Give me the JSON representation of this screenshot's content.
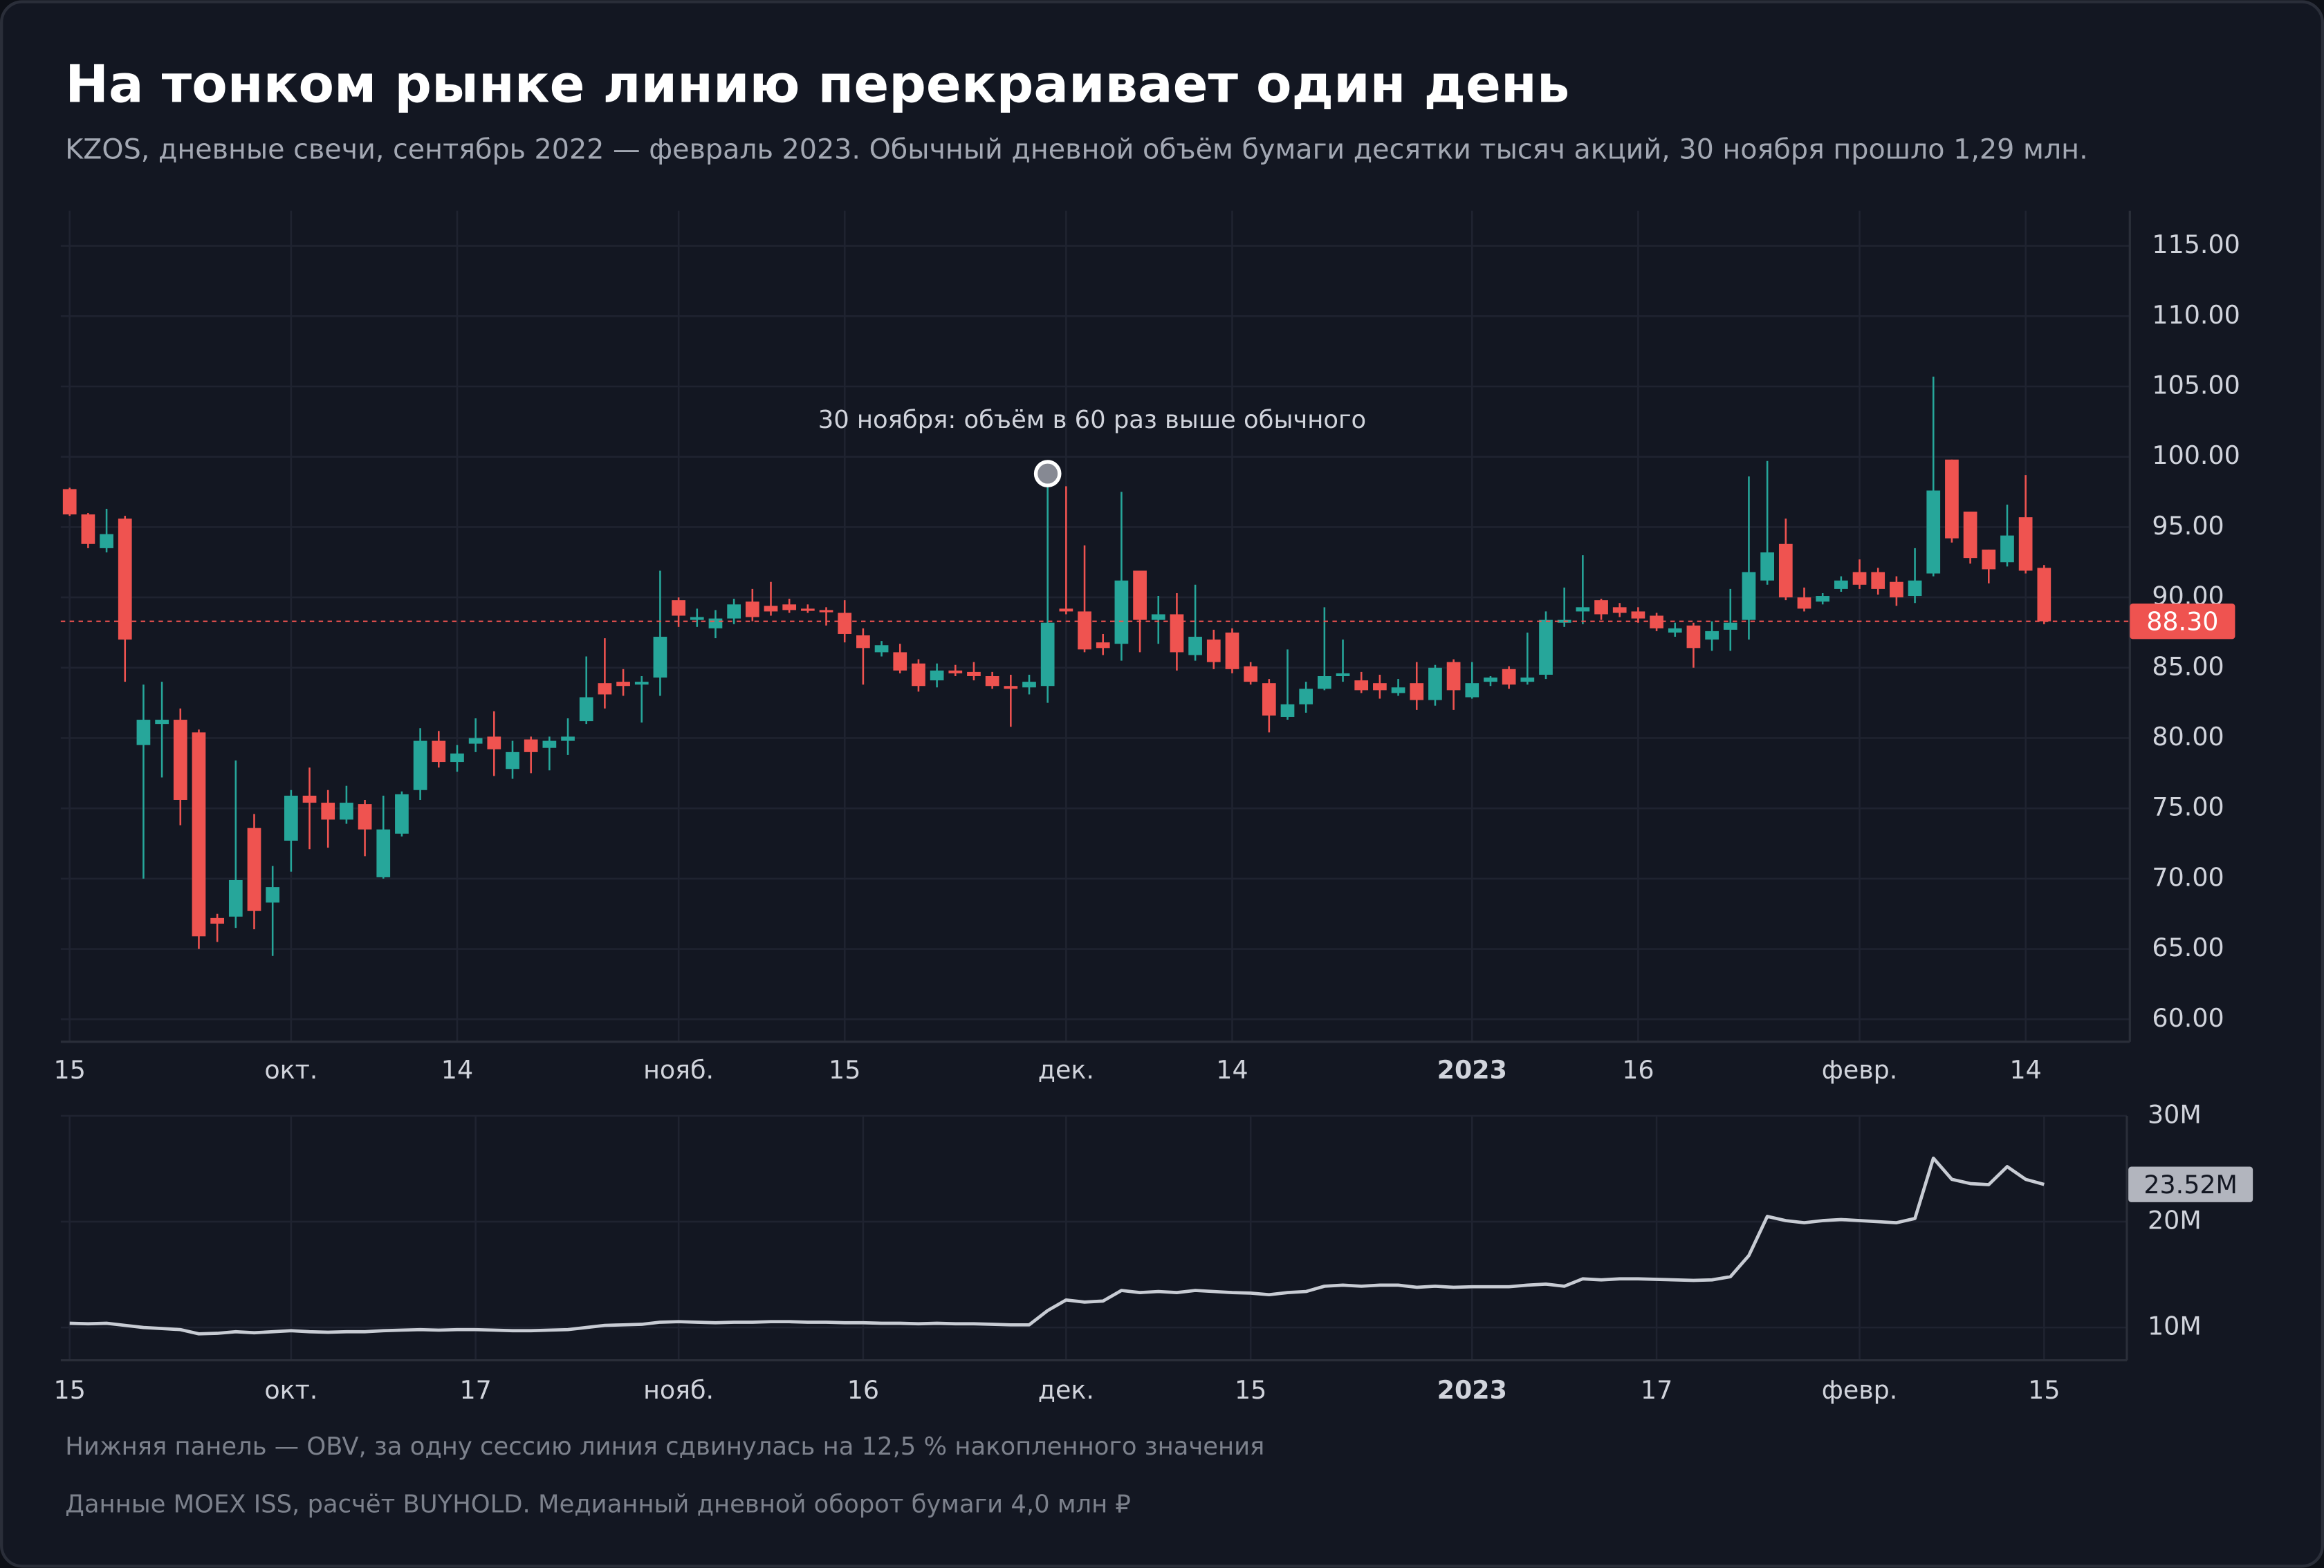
{
  "chart_data": [
    {
      "type": "candlestick",
      "title": "На тонком рынке линию перекраивает один день",
      "subtitle": "KZOS, дневные свечи, сентябрь 2022 — февраль 2023. Обычный дневной объём бумаги десятки тысяч акций, 30 ноября прошло 1,29 млн.",
      "annotation": {
        "text": "30 ноября: объём в 60 раз выше обычного",
        "value": 98.8
      },
      "up_color": "#26a69a",
      "down_color": "#ef5350",
      "price_line": {
        "value": 88.3,
        "label": "88.30"
      },
      "ylim": [
        58.4,
        117.5
      ],
      "yticks": [
        {
          "value": 60,
          "label": "60.00"
        },
        {
          "value": 65,
          "label": "65.00"
        },
        {
          "value": 70,
          "label": "70.00"
        },
        {
          "value": 75,
          "label": "75.00"
        },
        {
          "value": 80,
          "label": "80.00"
        },
        {
          "value": 85,
          "label": "85.00"
        },
        {
          "value": 90,
          "label": "90.00"
        },
        {
          "value": 95,
          "label": "95.00"
        },
        {
          "value": 100,
          "label": "100.00"
        },
        {
          "value": 105,
          "label": "105.00"
        },
        {
          "value": 110,
          "label": "110.00"
        },
        {
          "value": 115,
          "label": "115.00"
        }
      ],
      "grid": true,
      "categories": [
        "15",
        null,
        null,
        null,
        null,
        null,
        null,
        null,
        null,
        null,
        null,
        null,
        "окт.",
        null,
        null,
        null,
        null,
        null,
        null,
        null,
        null,
        "14",
        null,
        null,
        null,
        null,
        null,
        null,
        null,
        null,
        null,
        null,
        null,
        "нояб.",
        null,
        null,
        null,
        null,
        null,
        null,
        null,
        null,
        "15",
        null,
        null,
        null,
        null,
        null,
        null,
        null,
        null,
        null,
        null,
        null,
        "дек.",
        null,
        null,
        null,
        null,
        null,
        null,
        null,
        null,
        "14",
        null,
        null,
        null,
        null,
        null,
        null,
        null,
        null,
        null,
        null,
        null,
        null,
        "2023",
        null,
        null,
        null,
        null,
        null,
        null,
        null,
        null,
        "16",
        null,
        null,
        null,
        null,
        null,
        null,
        null,
        null,
        null,
        null,
        null,
        "февр.",
        null,
        null,
        null,
        null,
        null,
        null,
        null,
        null,
        "14",
        null
      ],
      "open": [
        97.7,
        95.9,
        93.5,
        95.6,
        79.5,
        81.0,
        81.3,
        80.4,
        67.2,
        67.3,
        73.6,
        68.3,
        72.7,
        75.9,
        75.4,
        74.2,
        75.3,
        70.1,
        73.2,
        76.3,
        79.8,
        78.3,
        79.6,
        80.1,
        77.8,
        79.9,
        79.3,
        79.8,
        81.2,
        83.9,
        84.0,
        83.8,
        84.3,
        89.8,
        88.4,
        87.8,
        88.5,
        89.7,
        89.4,
        89.5,
        89.2,
        89.1,
        88.9,
        87.3,
        86.1,
        86.1,
        85.3,
        84.1,
        84.8,
        84.7,
        84.4,
        83.7,
        83.6,
        83.7,
        89.2,
        89.0,
        86.8,
        86.7,
        91.9,
        88.4,
        88.8,
        85.9,
        87.0,
        87.5,
        85.1,
        83.9,
        81.5,
        82.4,
        83.5,
        84.4,
        84.1,
        83.9,
        83.2,
        83.9,
        82.7,
        85.4,
        82.9,
        84.0,
        84.9,
        84.0,
        84.5,
        88.2,
        89.0,
        89.8,
        89.3,
        89.0,
        88.7,
        87.5,
        88.0,
        87.0,
        87.7,
        88.4,
        91.2,
        93.8,
        90.0,
        89.7,
        90.6,
        91.8,
        91.8,
        91.1,
        90.1,
        91.7,
        99.8,
        96.1,
        93.4,
        92.5,
        95.7,
        92.1
      ],
      "high": [
        97.8,
        96.0,
        96.3,
        95.8,
        83.8,
        84.0,
        82.1,
        80.6,
        67.5,
        78.4,
        74.6,
        70.9,
        76.3,
        77.9,
        76.3,
        76.6,
        75.6,
        75.9,
        76.2,
        80.7,
        80.5,
        79.5,
        81.4,
        81.9,
        79.8,
        80.1,
        80.1,
        81.4,
        85.8,
        87.1,
        84.9,
        84.4,
        91.9,
        90.0,
        89.2,
        89.1,
        89.9,
        90.6,
        91.1,
        89.9,
        89.5,
        89.3,
        89.8,
        87.8,
        86.9,
        86.7,
        85.6,
        85.3,
        85.2,
        85.4,
        84.7,
        84.5,
        84.5,
        98.8,
        97.9,
        93.7,
        87.4,
        97.5,
        91.9,
        90.1,
        90.3,
        90.9,
        87.7,
        87.8,
        85.4,
        84.2,
        86.3,
        84.0,
        89.3,
        87.0,
        84.7,
        84.5,
        84.2,
        85.4,
        85.2,
        85.6,
        85.4,
        84.4,
        85.1,
        87.5,
        89.0,
        90.7,
        93.0,
        89.9,
        89.6,
        89.3,
        88.9,
        88.2,
        88.2,
        88.3,
        90.6,
        98.6,
        99.7,
        95.6,
        90.7,
        90.3,
        91.5,
        92.7,
        92.1,
        91.5,
        93.5,
        105.7,
        99.8,
        96.1,
        93.4,
        96.6,
        98.7,
        92.3
      ],
      "low": [
        95.8,
        93.5,
        93.2,
        84.0,
        70.0,
        77.2,
        73.8,
        65.0,
        65.5,
        66.5,
        66.4,
        64.5,
        70.5,
        72.1,
        72.2,
        73.9,
        71.6,
        70.0,
        73.0,
        75.6,
        77.9,
        77.6,
        79.0,
        77.3,
        77.1,
        77.5,
        77.7,
        78.8,
        81.0,
        82.1,
        83.0,
        81.1,
        83.0,
        87.9,
        87.9,
        87.1,
        88.1,
        88.3,
        88.7,
        88.9,
        88.9,
        88.0,
        86.8,
        83.8,
        85.8,
        84.6,
        83.3,
        83.6,
        84.4,
        84.1,
        83.5,
        80.8,
        83.1,
        82.5,
        88.8,
        86.1,
        85.9,
        85.5,
        86.1,
        86.7,
        84.8,
        85.5,
        84.9,
        84.6,
        83.8,
        80.4,
        81.3,
        81.8,
        83.4,
        84.0,
        83.2,
        82.8,
        83.0,
        82.0,
        82.3,
        82.0,
        82.8,
        83.7,
        83.5,
        83.8,
        84.2,
        87.9,
        88.1,
        88.4,
        88.6,
        88.2,
        87.6,
        87.2,
        85.0,
        86.2,
        86.2,
        87.0,
        90.9,
        89.8,
        89.0,
        89.5,
        90.4,
        90.6,
        90.2,
        89.4,
        89.6,
        91.5,
        93.9,
        92.4,
        91.0,
        92.2,
        91.7,
        88.1
      ],
      "close": [
        95.9,
        93.8,
        94.5,
        87.0,
        81.3,
        81.3,
        75.6,
        65.9,
        66.8,
        69.9,
        67.7,
        69.4,
        75.9,
        75.4,
        74.2,
        75.4,
        73.5,
        73.5,
        76.0,
        79.8,
        78.3,
        78.9,
        80.0,
        79.2,
        79.0,
        79.0,
        79.8,
        80.1,
        82.9,
        83.1,
        83.7,
        84.0,
        87.2,
        88.7,
        88.6,
        88.5,
        89.5,
        88.6,
        89.0,
        89.1,
        89.1,
        89.0,
        87.4,
        86.4,
        86.6,
        84.8,
        83.7,
        84.8,
        84.6,
        84.4,
        83.7,
        83.5,
        84.0,
        88.2,
        89.0,
        86.3,
        86.4,
        91.2,
        88.4,
        88.8,
        86.1,
        87.2,
        85.4,
        84.9,
        84.0,
        81.6,
        82.4,
        83.5,
        84.4,
        84.6,
        83.4,
        83.4,
        83.6,
        82.7,
        85.0,
        83.4,
        83.9,
        84.3,
        83.8,
        84.3,
        88.4,
        88.4,
        89.3,
        88.8,
        88.9,
        88.5,
        87.8,
        87.8,
        86.4,
        87.6,
        88.2,
        91.8,
        93.2,
        90.0,
        89.2,
        90.1,
        91.2,
        90.9,
        90.6,
        90.0,
        91.2,
        97.6,
        94.2,
        92.8,
        92.0,
        94.4,
        91.9,
        88.3
      ]
    },
    {
      "type": "line",
      "ylim": [
        6.9,
        30
      ],
      "yticks": [
        {
          "value": 10,
          "label": "10M"
        },
        {
          "value": 20,
          "label": "20M"
        },
        {
          "value": 30,
          "label": "30M"
        }
      ],
      "grid": true,
      "categories": [
        "15",
        null,
        null,
        null,
        null,
        null,
        null,
        null,
        null,
        null,
        null,
        null,
        "окт.",
        null,
        null,
        null,
        null,
        null,
        null,
        null,
        null,
        null,
        "17",
        null,
        null,
        null,
        null,
        null,
        null,
        null,
        null,
        null,
        null,
        "нояб.",
        null,
        null,
        null,
        null,
        null,
        null,
        null,
        null,
        null,
        "16",
        null,
        null,
        null,
        null,
        null,
        null,
        null,
        null,
        null,
        null,
        "дек.",
        null,
        null,
        null,
        null,
        null,
        null,
        null,
        null,
        null,
        "15",
        null,
        null,
        null,
        null,
        null,
        null,
        null,
        null,
        null,
        null,
        null,
        "2023",
        null,
        null,
        null,
        null,
        null,
        null,
        null,
        null,
        null,
        "17",
        null,
        null,
        null,
        null,
        null,
        null,
        null,
        null,
        null,
        null,
        "февр.",
        null,
        null,
        null,
        null,
        null,
        null,
        null,
        null,
        null,
        "15"
      ],
      "series": [
        {
          "color": "#c8ccd4",
          "values": [
            10.4,
            10.35,
            10.4,
            10.2,
            10.0,
            9.9,
            9.8,
            9.4,
            9.45,
            9.6,
            9.5,
            9.6,
            9.7,
            9.6,
            9.55,
            9.6,
            9.6,
            9.7,
            9.75,
            9.8,
            9.75,
            9.8,
            9.8,
            9.75,
            9.7,
            9.7,
            9.75,
            9.8,
            10.0,
            10.2,
            10.25,
            10.3,
            10.5,
            10.55,
            10.5,
            10.45,
            10.5,
            10.5,
            10.55,
            10.55,
            10.5,
            10.5,
            10.45,
            10.45,
            10.4,
            10.4,
            10.35,
            10.4,
            10.35,
            10.35,
            10.3,
            10.25,
            10.25,
            11.6,
            12.6,
            12.4,
            12.5,
            13.5,
            13.3,
            13.4,
            13.3,
            13.5,
            13.4,
            13.3,
            13.25,
            13.1,
            13.3,
            13.4,
            13.9,
            14.0,
            13.9,
            14.0,
            14.0,
            13.8,
            13.9,
            13.8,
            13.85,
            13.85,
            13.85,
            14.0,
            14.1,
            13.9,
            14.6,
            14.5,
            14.6,
            14.6,
            14.55,
            14.5,
            14.45,
            14.5,
            14.8,
            16.8,
            20.5,
            20.1,
            19.9,
            20.1,
            20.2,
            20.1,
            20.0,
            19.9,
            20.3,
            26.0,
            24.0,
            23.6,
            23.5,
            25.2,
            24.0,
            23.52
          ],
          "value_labels": [
            null,
            null,
            null,
            null,
            null,
            null,
            null,
            null,
            null,
            null,
            null,
            null,
            null,
            null,
            null,
            null,
            null,
            null,
            null,
            null,
            null,
            null,
            null,
            null,
            null,
            null,
            null,
            null,
            null,
            null,
            null,
            null,
            null,
            null,
            null,
            null,
            null,
            null,
            null,
            null,
            null,
            null,
            null,
            null,
            null,
            null,
            null,
            null,
            null,
            null,
            null,
            null,
            null,
            null,
            null,
            null,
            null,
            null,
            null,
            null,
            null,
            null,
            null,
            null,
            null,
            null,
            null,
            null,
            null,
            null,
            null,
            null,
            null,
            null,
            null,
            null,
            null,
            null,
            null,
            null,
            null,
            null,
            null,
            null,
            null,
            null,
            null,
            null,
            null,
            null,
            null,
            null,
            null,
            null,
            null,
            null,
            null,
            null,
            null,
            null,
            null,
            null,
            null,
            null,
            null,
            null,
            null,
            "23.52M"
          ]
        }
      ]
    }
  ],
  "notes": [
    "Нижняя панель — OBV, за одну сессию линия сдвинулась на 12,5 % накопленного значения",
    "Данные MOEX ISS, расчёт BUYHOLD. Медианный дневной оборот бумаги 4,0 млн ₽"
  ]
}
